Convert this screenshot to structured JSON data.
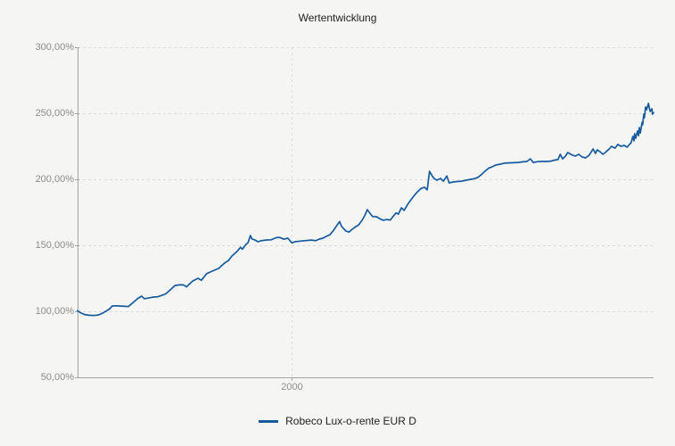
{
  "colors": {
    "background": "#f5f5f4",
    "axis": "#a3a3a3",
    "gridline": "#dcdcdc",
    "tick_label": "#8c8c8c",
    "title_text": "#222222",
    "legend_text": "#222222",
    "series_blue": "#175b9e"
  },
  "chart_data": {
    "type": "line",
    "title": "Wertentwicklung",
    "xlabel": "",
    "ylabel": "",
    "ylim": [
      50,
      300
    ],
    "grid": "dashed-horizontal-per-tick-plus-one-vertical",
    "legend_position": "bottom-center",
    "y_ticks": [
      {
        "value": 300,
        "label": "300,00%"
      },
      {
        "value": 250,
        "label": "250,00%"
      },
      {
        "value": 200,
        "label": "200,00%"
      },
      {
        "value": 150,
        "label": "150,00%"
      },
      {
        "value": 100,
        "label": "100,00%"
      },
      {
        "value": 50,
        "label": "50,00%"
      }
    ],
    "x_ticks": [
      {
        "label": "2000",
        "position": 0.372
      }
    ],
    "series": [
      {
        "name": "Robeco Lux-o-rente EUR D",
        "color": "#175b9e",
        "points": [
          [
            0.0,
            100.5
          ],
          [
            0.005,
            99.0
          ],
          [
            0.012,
            97.6
          ],
          [
            0.02,
            97.0
          ],
          [
            0.028,
            96.8
          ],
          [
            0.036,
            97.2
          ],
          [
            0.043,
            98.5
          ],
          [
            0.051,
            100.5
          ],
          [
            0.056,
            102.0
          ],
          [
            0.06,
            104.0
          ],
          [
            0.067,
            104.2
          ],
          [
            0.074,
            104.0
          ],
          [
            0.082,
            103.8
          ],
          [
            0.088,
            103.6
          ],
          [
            0.096,
            106.5
          ],
          [
            0.104,
            109.5
          ],
          [
            0.111,
            111.5
          ],
          [
            0.116,
            109.5
          ],
          [
            0.124,
            110.2
          ],
          [
            0.132,
            110.8
          ],
          [
            0.139,
            111.0
          ],
          [
            0.147,
            112.2
          ],
          [
            0.153,
            113.2
          ],
          [
            0.159,
            115.5
          ],
          [
            0.164,
            117.5
          ],
          [
            0.169,
            119.5
          ],
          [
            0.176,
            120.0
          ],
          [
            0.184,
            120.0
          ],
          [
            0.189,
            118.5
          ],
          [
            0.195,
            121.0
          ],
          [
            0.2,
            123.0
          ],
          [
            0.209,
            125.0
          ],
          [
            0.215,
            123.5
          ],
          [
            0.224,
            128.5
          ],
          [
            0.234,
            130.5
          ],
          [
            0.245,
            132.5
          ],
          [
            0.255,
            136.5
          ],
          [
            0.262,
            138.5
          ],
          [
            0.268,
            141.9
          ],
          [
            0.276,
            145.0
          ],
          [
            0.283,
            148.5
          ],
          [
            0.286,
            147.0
          ],
          [
            0.291,
            150.0
          ],
          [
            0.296,
            152.0
          ],
          [
            0.3,
            157.4
          ],
          [
            0.303,
            154.7
          ],
          [
            0.308,
            154.0
          ],
          [
            0.313,
            152.7
          ],
          [
            0.319,
            153.5
          ],
          [
            0.327,
            154.0
          ],
          [
            0.336,
            154.2
          ],
          [
            0.345,
            155.8
          ],
          [
            0.351,
            156.0
          ],
          [
            0.358,
            154.6
          ],
          [
            0.365,
            155.4
          ],
          [
            0.372,
            151.8
          ],
          [
            0.378,
            152.8
          ],
          [
            0.387,
            153.2
          ],
          [
            0.396,
            153.6
          ],
          [
            0.406,
            154.0
          ],
          [
            0.413,
            153.5
          ],
          [
            0.42,
            154.7
          ],
          [
            0.426,
            155.4
          ],
          [
            0.432,
            156.8
          ],
          [
            0.438,
            158.0
          ],
          [
            0.444,
            161.0
          ],
          [
            0.45,
            165.0
          ],
          [
            0.455,
            168.0
          ],
          [
            0.458,
            164.5
          ],
          [
            0.462,
            162.5
          ],
          [
            0.466,
            160.8
          ],
          [
            0.471,
            160.0
          ],
          [
            0.475,
            161.5
          ],
          [
            0.481,
            163.5
          ],
          [
            0.488,
            165.5
          ],
          [
            0.494,
            169.0
          ],
          [
            0.499,
            173.0
          ],
          [
            0.503,
            177.0
          ],
          [
            0.508,
            174.0
          ],
          [
            0.512,
            171.8
          ],
          [
            0.519,
            171.6
          ],
          [
            0.525,
            170.0
          ],
          [
            0.531,
            169.0
          ],
          [
            0.537,
            169.5
          ],
          [
            0.543,
            169.2
          ],
          [
            0.548,
            172.0
          ],
          [
            0.553,
            174.5
          ],
          [
            0.557,
            173.6
          ],
          [
            0.562,
            178.4
          ],
          [
            0.567,
            176.5
          ],
          [
            0.573,
            181.0
          ],
          [
            0.579,
            184.5
          ],
          [
            0.584,
            187.5
          ],
          [
            0.59,
            190.5
          ],
          [
            0.596,
            193.0
          ],
          [
            0.602,
            194.0
          ],
          [
            0.607,
            192.0
          ],
          [
            0.611,
            206.0
          ],
          [
            0.615,
            203.0
          ],
          [
            0.619,
            200.5
          ],
          [
            0.624,
            199.3
          ],
          [
            0.63,
            200.7
          ],
          [
            0.635,
            198.6
          ],
          [
            0.641,
            202.5
          ],
          [
            0.645,
            197.3
          ],
          [
            0.652,
            198.0
          ],
          [
            0.659,
            198.3
          ],
          [
            0.667,
            198.6
          ],
          [
            0.675,
            199.3
          ],
          [
            0.683,
            200.0
          ],
          [
            0.689,
            200.5
          ],
          [
            0.695,
            201.5
          ],
          [
            0.701,
            203.5
          ],
          [
            0.707,
            206.0
          ],
          [
            0.714,
            208.5
          ],
          [
            0.72,
            209.5
          ],
          [
            0.726,
            210.8
          ],
          [
            0.734,
            211.5
          ],
          [
            0.741,
            212.2
          ],
          [
            0.749,
            212.4
          ],
          [
            0.757,
            212.6
          ],
          [
            0.765,
            212.8
          ],
          [
            0.772,
            213.2
          ],
          [
            0.78,
            213.5
          ],
          [
            0.786,
            215.5
          ],
          [
            0.791,
            212.8
          ],
          [
            0.799,
            213.4
          ],
          [
            0.806,
            213.5
          ],
          [
            0.814,
            213.5
          ],
          [
            0.822,
            213.8
          ],
          [
            0.828,
            214.5
          ],
          [
            0.834,
            214.9
          ],
          [
            0.838,
            218.9
          ],
          [
            0.842,
            215.5
          ],
          [
            0.847,
            217.6
          ],
          [
            0.851,
            220.3
          ],
          [
            0.858,
            218.5
          ],
          [
            0.864,
            217.6
          ],
          [
            0.87,
            218.9
          ],
          [
            0.876,
            216.9
          ],
          [
            0.882,
            216.2
          ],
          [
            0.888,
            218.2
          ],
          [
            0.895,
            223.0
          ],
          [
            0.899,
            219.6
          ],
          [
            0.902,
            222.3
          ],
          [
            0.907,
            220.9
          ],
          [
            0.912,
            218.9
          ],
          [
            0.916,
            220.3
          ],
          [
            0.923,
            223.0
          ],
          [
            0.927,
            225.0
          ],
          [
            0.933,
            223.6
          ],
          [
            0.938,
            226.4
          ],
          [
            0.943,
            225.0
          ],
          [
            0.949,
            225.7
          ],
          [
            0.954,
            224.3
          ],
          [
            0.958,
            226.4
          ],
          [
            0.961,
            227.7
          ],
          [
            0.964,
            232.4
          ],
          [
            0.966,
            229.1
          ],
          [
            0.967,
            234.5
          ],
          [
            0.969,
            231.1
          ],
          [
            0.972,
            236.5
          ],
          [
            0.974,
            233.1
          ],
          [
            0.975,
            239.2
          ],
          [
            0.977,
            235.1
          ],
          [
            0.98,
            243.2
          ],
          [
            0.981,
            241.2
          ],
          [
            0.983,
            249.3
          ],
          [
            0.984,
            246.6
          ],
          [
            0.986,
            254.7
          ],
          [
            0.988,
            252.7
          ],
          [
            0.991,
            257.5
          ],
          [
            0.992,
            255.5
          ],
          [
            0.994,
            251.4
          ],
          [
            0.997,
            253.4
          ],
          [
            0.998,
            249.3
          ],
          [
            1.0,
            250.5
          ]
        ]
      }
    ]
  }
}
